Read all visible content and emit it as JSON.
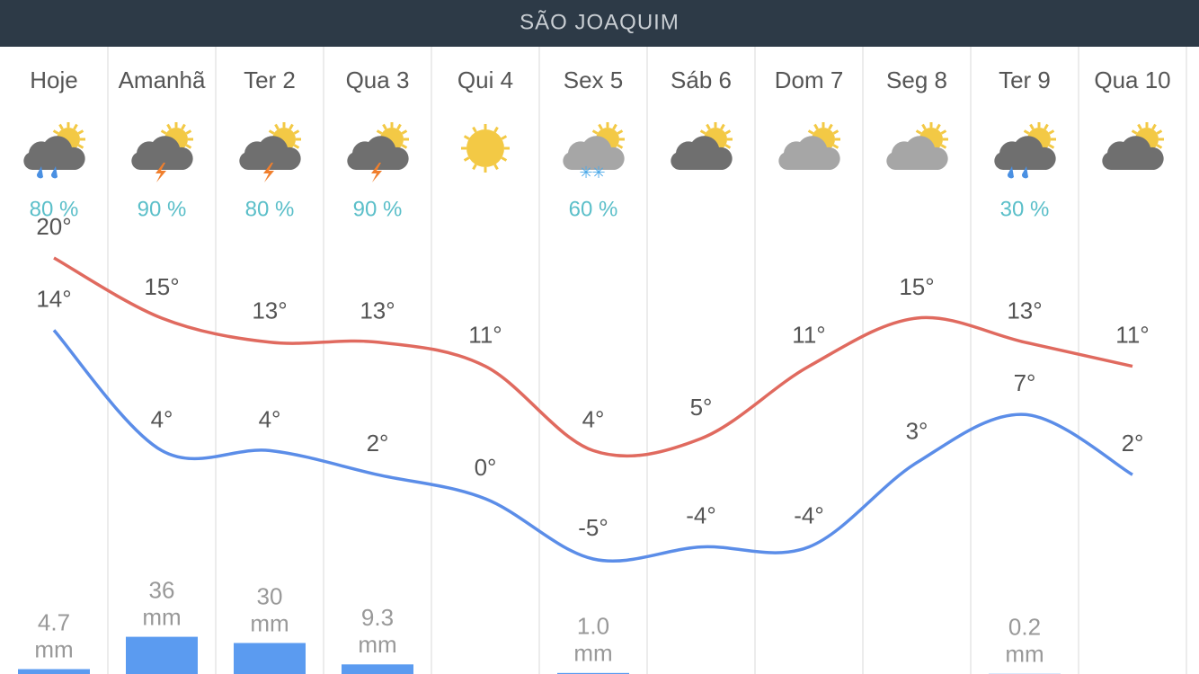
{
  "header": {
    "title": "SÃO JOAQUIM"
  },
  "days": [
    "Hoje",
    "Amanhã",
    "Ter 2",
    "Qua 3",
    "Qui 4",
    "Sex 5",
    "Sáb 6",
    "Dom 7",
    "Seg 8",
    "Ter 9",
    "Qua 10"
  ],
  "icons": [
    "rain",
    "storm",
    "storm",
    "storm",
    "sun",
    "snow",
    "cloud-dark",
    "cloud-light",
    "cloud-light",
    "rain",
    "cloud-dark"
  ],
  "precip_chance": {
    "color": "#5bbfc9",
    "values": [
      80,
      90,
      80,
      90,
      null,
      60,
      null,
      null,
      null,
      30,
      null
    ],
    "value_labels": [
      "80 %",
      "90 %",
      "80 %",
      "90 %",
      null,
      "60 %",
      null,
      null,
      null,
      "30 %",
      null
    ]
  },
  "high": {
    "color": "#e06a5f",
    "values": [
      20,
      15,
      13,
      13,
      11,
      4,
      5,
      11,
      15,
      13,
      11
    ],
    "value_labels": [
      "20°",
      "15°",
      "13°",
      "13°",
      "11°",
      "4°",
      "5°",
      "11°",
      "15°",
      "13°",
      "11°"
    ]
  },
  "low": {
    "color": "#5b8de8",
    "values": [
      14,
      4,
      4,
      2,
      0,
      -5,
      -4,
      -4,
      3,
      7,
      2
    ],
    "value_labels": [
      "14°",
      "4°",
      "4°",
      "2°",
      "0°",
      "-5°",
      "-4°",
      "-4°",
      "3°",
      "7°",
      "2°"
    ]
  },
  "rain": {
    "color": "#5b9bf0",
    "unit": "mm",
    "values": [
      4.7,
      36,
      30,
      9.3,
      null,
      1,
      null,
      null,
      null,
      0.2,
      null
    ],
    "value_labels": [
      "4.7",
      "36",
      "30",
      "9.3",
      null,
      "1.0",
      null,
      null,
      null,
      "0.2",
      null
    ]
  }
}
